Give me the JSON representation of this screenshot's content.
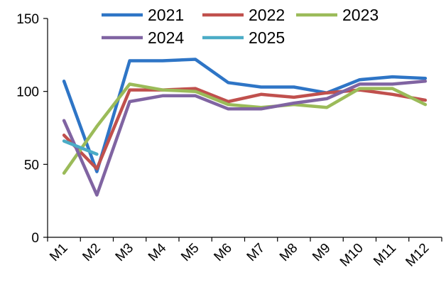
{
  "chart_data": {
    "type": "line",
    "categories": [
      "M1",
      "M2",
      "M3",
      "M4",
      "M5",
      "M6",
      "M7",
      "M8",
      "M9",
      "M10",
      "M11",
      "M12"
    ],
    "ylim": [
      0,
      150
    ],
    "yticks": [
      0,
      50,
      100,
      150
    ],
    "grid": false,
    "legend_position": "top",
    "series": [
      {
        "name": "2021",
        "color": "#2e75c6",
        "values": [
          107,
          45,
          121,
          121,
          122,
          106,
          103,
          103,
          99,
          108,
          110,
          109
        ]
      },
      {
        "name": "2022",
        "color": "#c0504d",
        "values": [
          70,
          47,
          101,
          101,
          102,
          93,
          98,
          96,
          99,
          101,
          98,
          94
        ]
      },
      {
        "name": "2023",
        "color": "#9bbb59",
        "values": [
          44,
          76,
          105,
          101,
          100,
          91,
          89,
          91,
          89,
          102,
          102,
          91
        ]
      },
      {
        "name": "2024",
        "color": "#8064a2",
        "values": [
          80,
          29,
          93,
          97,
          97,
          88,
          88,
          92,
          95,
          105,
          105,
          107
        ]
      },
      {
        "name": "2025",
        "color": "#4bacc6",
        "values": [
          66,
          57,
          null,
          null,
          null,
          null,
          null,
          null,
          null,
          null,
          null,
          null
        ]
      }
    ]
  }
}
